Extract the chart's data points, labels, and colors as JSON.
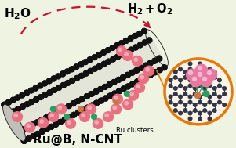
{
  "bg_color": "#eef3e2",
  "title_bottom": "Ru@B, N-CNT",
  "label_left": "H$_2$O",
  "label_right": "H$_2$+O$_2$",
  "label_ru": "Ru clusters",
  "tube_color": "#111111",
  "ru_color": "#e87080",
  "ru_highlight": "#f5b0bc",
  "ru_inset_color": "#e878a0",
  "ru_inset_highlight": "#f5b0d0",
  "boron_color": "#c87840",
  "nitrogen_color": "#28a060",
  "arrow_color": "#cc1030",
  "inset_circle_color": "#e87800",
  "carbon_node_color": "#181818",
  "carbon_node_inset": "#303845",
  "bond_inset_color": "#303845",
  "ru_bond_color": "#e060a0",
  "inset_bg": "#fdf5ec"
}
